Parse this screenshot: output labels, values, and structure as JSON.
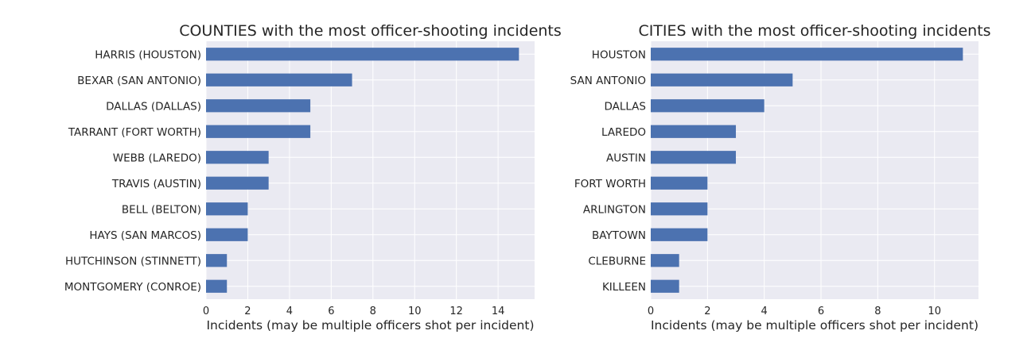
{
  "chart_data": [
    {
      "type": "bar",
      "orientation": "horizontal",
      "title": "COUNTIES with the most officer-shooting incidents",
      "xlabel": "Incidents (may be multiple officers shot per incident)",
      "ylabel": "",
      "categories": [
        "HARRIS (HOUSTON)",
        "BEXAR (SAN ANTONIO)",
        "DALLAS (DALLAS)",
        "TARRANT (FORT WORTH)",
        "WEBB (LAREDO)",
        "TRAVIS (AUSTIN)",
        "BELL (BELTON)",
        "HAYS (SAN MARCOS)",
        "HUTCHINSON (STINNETT)",
        "MONTGOMERY (CONROE)"
      ],
      "values": [
        15,
        7,
        5,
        5,
        3,
        3,
        2,
        2,
        1,
        1
      ],
      "xlim": [
        0,
        15.75
      ],
      "xticks": [
        0,
        2,
        4,
        6,
        8,
        10,
        12,
        14
      ],
      "grid": true,
      "bar_color": "#4c72b0"
    },
    {
      "type": "bar",
      "orientation": "horizontal",
      "title": "CITIES with the most officer-shooting incidents",
      "xlabel": "Incidents (may be multiple officers shot per incident)",
      "ylabel": "",
      "categories": [
        "HOUSTON",
        "SAN ANTONIO",
        "DALLAS",
        "LAREDO",
        "AUSTIN",
        "FORT WORTH",
        "ARLINGTON",
        "BAYTOWN",
        "CLEBURNE",
        "KILLEEN"
      ],
      "values": [
        11,
        5,
        4,
        3,
        3,
        2,
        2,
        2,
        1,
        1
      ],
      "xlim": [
        0,
        11.55
      ],
      "xticks": [
        0,
        2,
        4,
        6,
        8,
        10
      ],
      "grid": true,
      "bar_color": "#4c72b0"
    }
  ],
  "style": {
    "axes_background": "#eaeaf2",
    "grid_color": "#ffffff",
    "text_color": "#262626"
  }
}
